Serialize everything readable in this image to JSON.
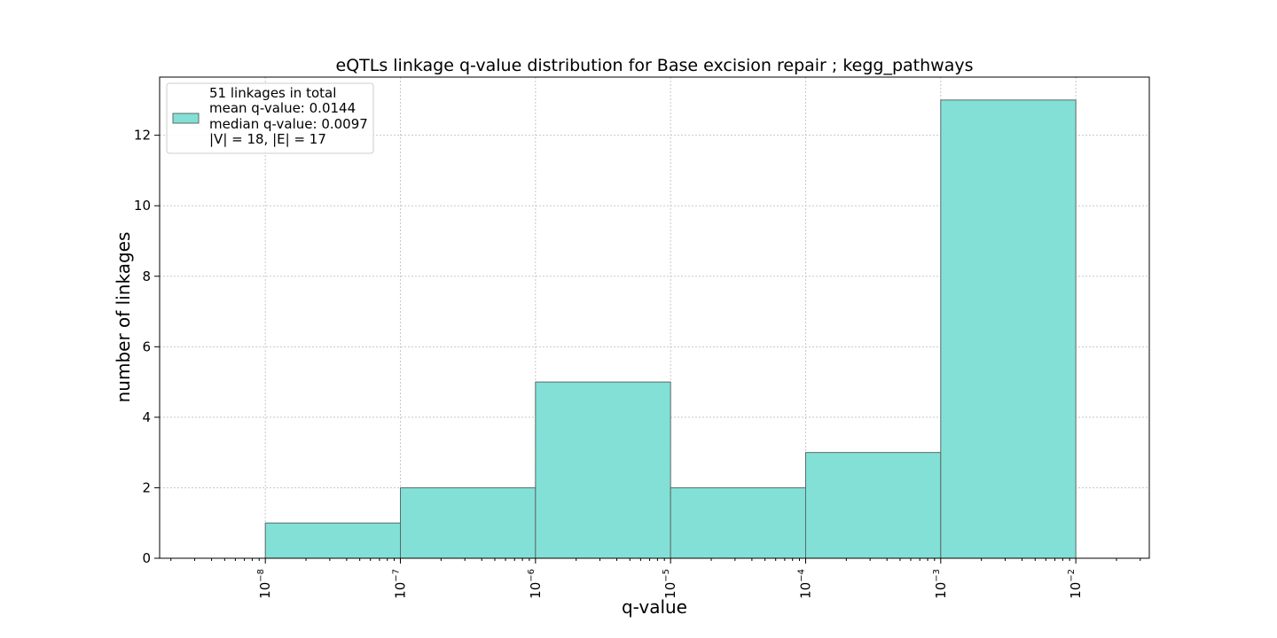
{
  "chart_data": {
    "type": "bar",
    "title": "eQTLs linkage q-value distribution for Base excision repair ; kegg_pathways",
    "xlabel": "q-value",
    "ylabel": "number of linkages",
    "xscale": "log",
    "bins": [
      {
        "start": 1e-08,
        "end": 1e-07,
        "count": 1
      },
      {
        "start": 1e-07,
        "end": 1e-06,
        "count": 2
      },
      {
        "start": 1e-06,
        "end": 1e-05,
        "count": 5
      },
      {
        "start": 1e-05,
        "end": 0.0001,
        "count": 2
      },
      {
        "start": 0.0001,
        "end": 0.001,
        "count": 3
      },
      {
        "start": 0.001,
        "end": 0.01,
        "count": 13
      }
    ],
    "xlim": [
      1.65e-09,
      0.035
    ],
    "ylim": [
      0,
      13.65
    ],
    "x_tick_exponents": [
      -8,
      -7,
      -6,
      -5,
      -4,
      -3,
      -2
    ],
    "y_ticks": [
      0,
      2,
      4,
      6,
      8,
      10,
      12
    ],
    "grid": true,
    "legend_position": "top-left",
    "legend_lines": [
      "51 linkages in total",
      "mean q-value: 0.0144",
      "median q-value: 0.0097",
      "|V| = 18, |E| = 17"
    ],
    "colors": {
      "bar_fill": "#83e0d6",
      "bar_edge": "#5a6b68",
      "grid": "#c8c8c8"
    }
  }
}
